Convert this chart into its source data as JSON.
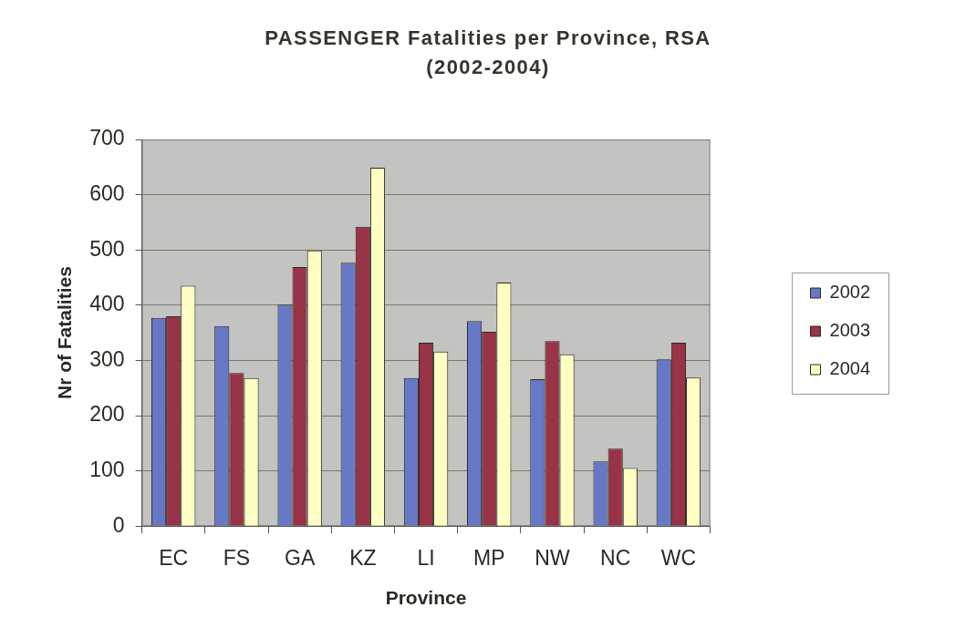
{
  "chart_data": {
    "type": "bar",
    "title": "PASSENGER Fatalities per Province, RSA",
    "subtitle": "(2002-2004)",
    "xlabel": "Province",
    "ylabel": "Nr of Fatalities",
    "categories": [
      "EC",
      "FS",
      "GA",
      "KZ",
      "LI",
      "MP",
      "NW",
      "NC",
      "WC"
    ],
    "series": [
      {
        "name": "2002",
        "color": "#6678c6",
        "values": [
          377,
          362,
          401,
          477,
          268,
          371,
          266,
          117,
          302
        ]
      },
      {
        "name": "2003",
        "color": "#993347",
        "values": [
          380,
          277,
          469,
          542,
          332,
          352,
          335,
          140,
          332
        ]
      },
      {
        "name": "2004",
        "color": "#ffffc4",
        "values": [
          435,
          268,
          499,
          649,
          316,
          441,
          311,
          105,
          269
        ]
      }
    ],
    "ylim": [
      0,
      700
    ],
    "yticks": [
      0,
      100,
      200,
      300,
      400,
      500,
      600,
      700
    ],
    "grid": "y",
    "legend": "right"
  }
}
